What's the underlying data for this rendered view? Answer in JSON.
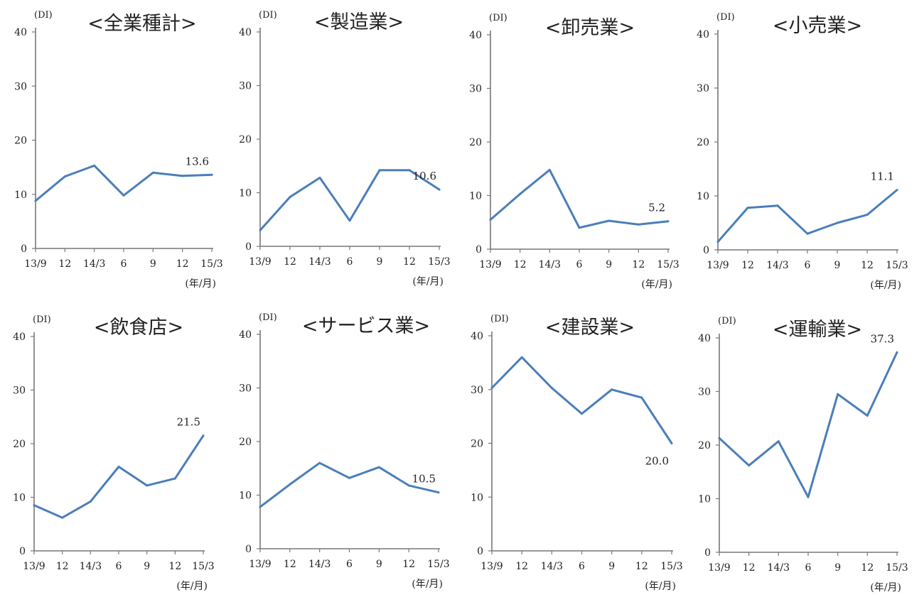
{
  "y_unit": "(DI)",
  "x_unit": "(年/月)",
  "categories": [
    "13/9",
    "12",
    "14/3",
    "6",
    "9",
    "12",
    "15/3"
  ],
  "colors": {
    "line": "#4a7ebb",
    "axis": "#777777"
  },
  "chart_data": [
    {
      "type": "line",
      "title": "<全業種計>",
      "ylim": [
        0,
        40
      ],
      "yticks": [
        0,
        10,
        20,
        30,
        40
      ],
      "categories": [
        "13/9",
        "12",
        "14/3",
        "6",
        "9",
        "12",
        "15/3"
      ],
      "values": [
        8.8,
        13.3,
        15.3,
        9.8,
        14.0,
        13.4,
        13.6
      ],
      "data_label": "13.6"
    },
    {
      "type": "line",
      "title": "<製造業>",
      "ylim": [
        0,
        40
      ],
      "yticks": [
        0,
        10,
        20,
        30,
        40
      ],
      "categories": [
        "13/9",
        "12",
        "14/3",
        "6",
        "9",
        "12",
        "15/3"
      ],
      "values": [
        3.0,
        9.2,
        12.8,
        4.8,
        14.2,
        14.2,
        10.6
      ],
      "data_label": "10.6"
    },
    {
      "type": "line",
      "title": "<卸売業>",
      "ylim": [
        0,
        40
      ],
      "yticks": [
        0,
        10,
        20,
        30,
        40
      ],
      "categories": [
        "13/9",
        "12",
        "14/3",
        "6",
        "9",
        "12",
        "15/3"
      ],
      "values": [
        5.5,
        10.3,
        14.8,
        4.0,
        5.3,
        4.6,
        5.2
      ],
      "data_label": "5.2"
    },
    {
      "type": "line",
      "title": "<小売業>",
      "ylim": [
        0,
        40
      ],
      "yticks": [
        0,
        10,
        20,
        30,
        40
      ],
      "categories": [
        "13/9",
        "12",
        "14/3",
        "6",
        "9",
        "12",
        "15/3"
      ],
      "values": [
        1.5,
        7.8,
        8.2,
        3.0,
        5.0,
        6.5,
        11.1
      ],
      "data_label": "11.1"
    },
    {
      "type": "line",
      "title": "<飲食店>",
      "ylim": [
        0,
        40
      ],
      "yticks": [
        0,
        10,
        20,
        30,
        40
      ],
      "categories": [
        "13/9",
        "12",
        "14/3",
        "6",
        "9",
        "12",
        "15/3"
      ],
      "values": [
        8.5,
        6.2,
        9.2,
        15.7,
        12.2,
        13.5,
        21.5
      ],
      "data_label": "21.5"
    },
    {
      "type": "line",
      "title": "<サービス業>",
      "ylim": [
        0,
        40
      ],
      "yticks": [
        0,
        10,
        20,
        30,
        40
      ],
      "categories": [
        "13/9",
        "12",
        "14/3",
        "6",
        "9",
        "12",
        "15/3"
      ],
      "values": [
        7.8,
        12.0,
        16.0,
        13.2,
        15.2,
        11.8,
        10.5
      ],
      "data_label": "10.5"
    },
    {
      "type": "line",
      "title": "<建設業>",
      "ylim": [
        0,
        40
      ],
      "yticks": [
        0,
        10,
        20,
        30,
        40
      ],
      "categories": [
        "13/9",
        "12",
        "14/3",
        "6",
        "9",
        "12",
        "15/3"
      ],
      "values": [
        30.3,
        36.0,
        30.3,
        25.5,
        30.0,
        28.5,
        20.0
      ],
      "data_label": "20.0"
    },
    {
      "type": "line",
      "title": "<運輸業>",
      "ylim": [
        0,
        40
      ],
      "yticks": [
        0,
        10,
        20,
        30,
        40
      ],
      "categories": [
        "13/9",
        "12",
        "14/3",
        "6",
        "9",
        "12",
        "15/3"
      ],
      "values": [
        21.3,
        16.2,
        20.7,
        10.3,
        29.5,
        25.5,
        37.3
      ],
      "data_label": "37.3"
    }
  ]
}
